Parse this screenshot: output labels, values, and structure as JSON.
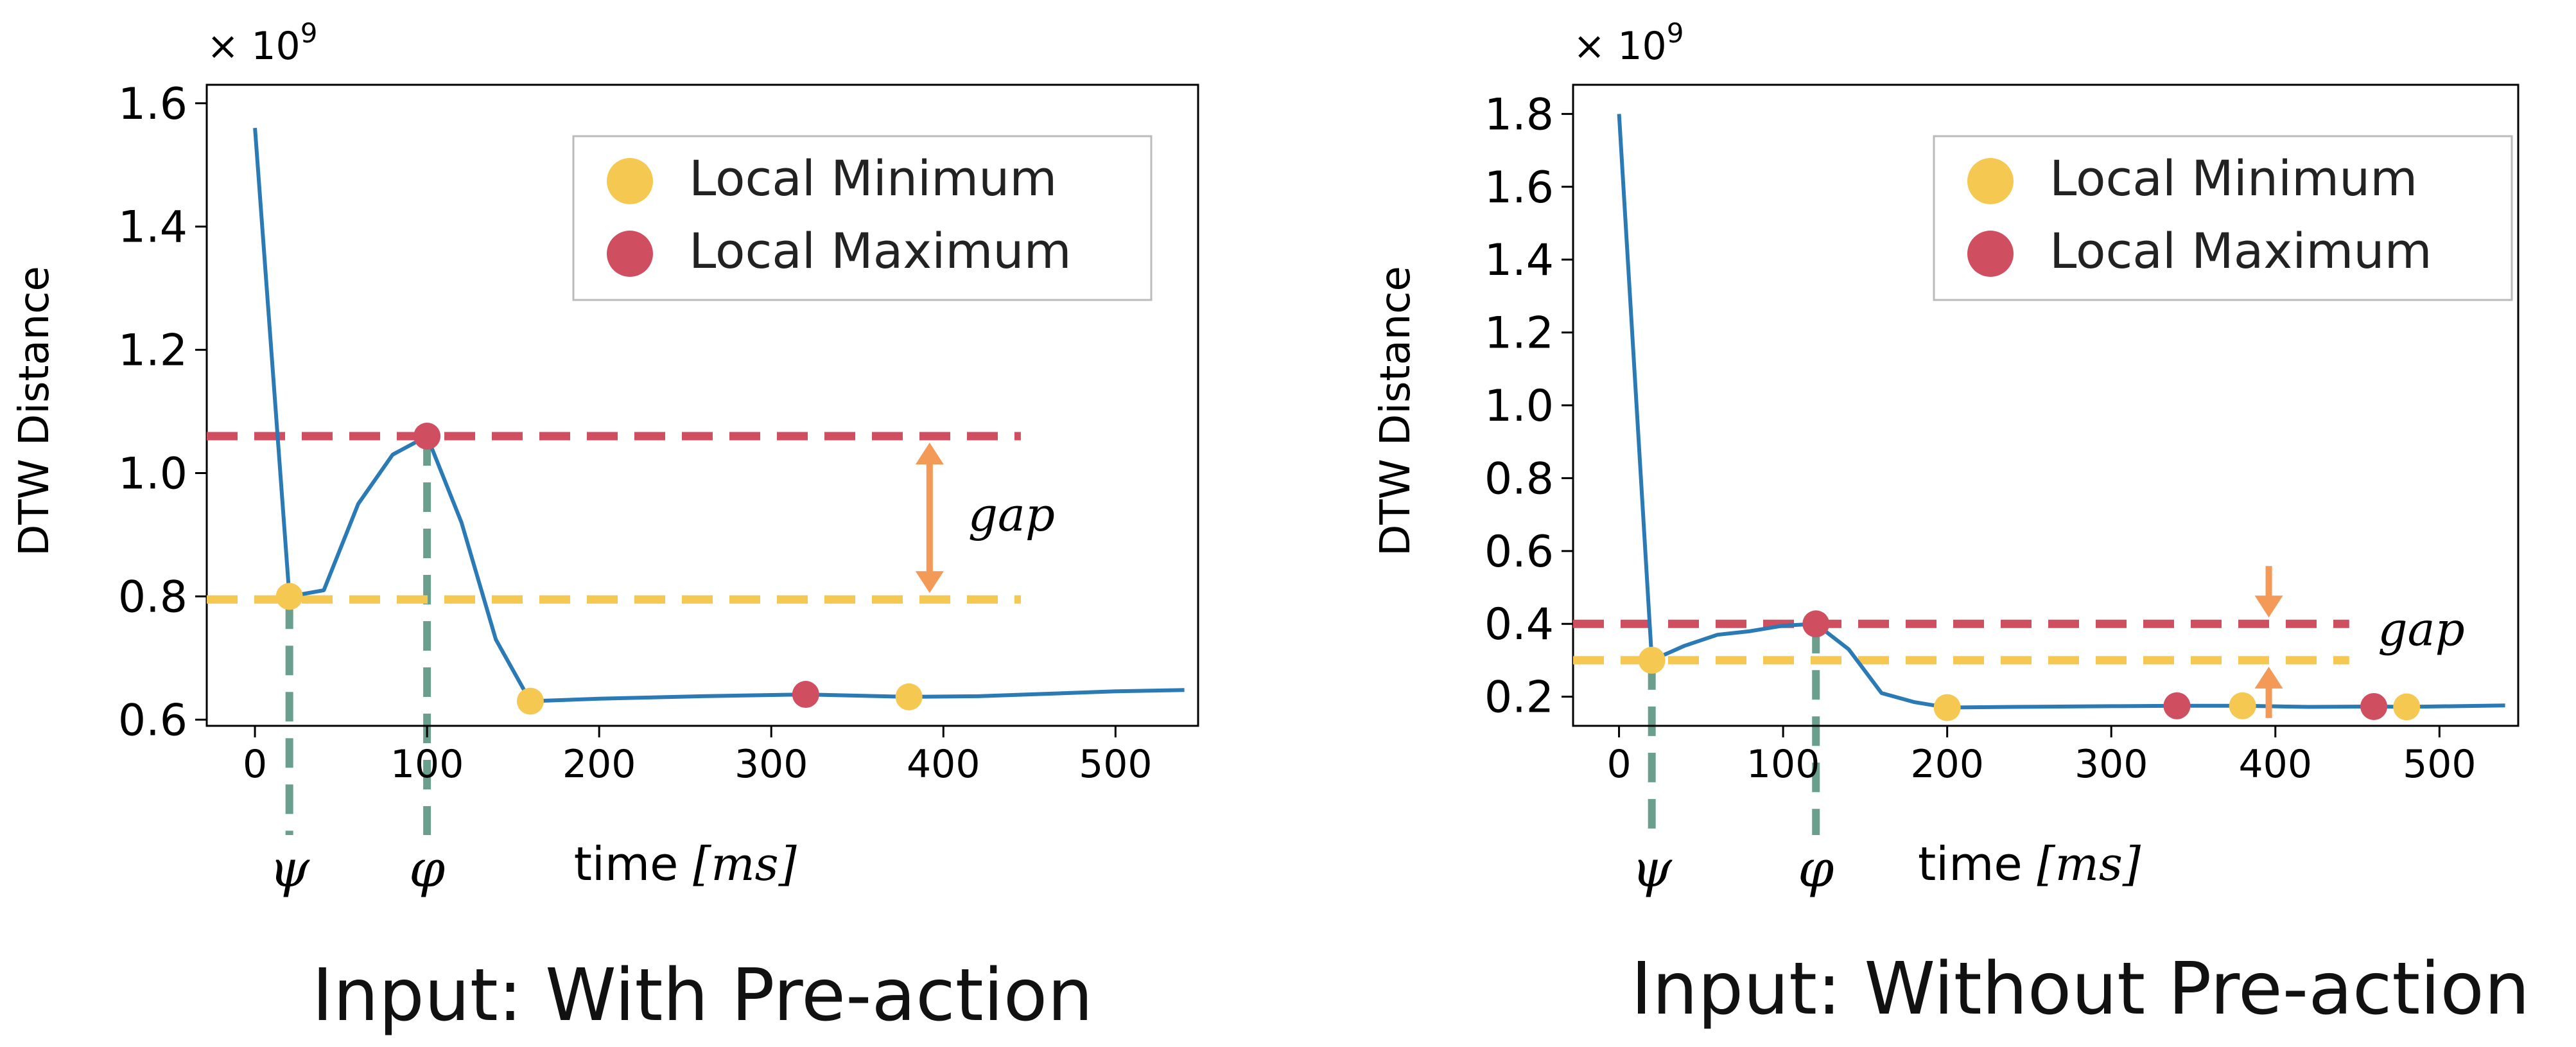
{
  "chart_data": [
    {
      "type": "line",
      "caption": "Input: With Pre-action",
      "ylabel": "DTW Distance",
      "xlabel_prefix": "time ",
      "xlabel_unit": "[ms]",
      "y_multiplier": "× 10",
      "y_exponent": "9",
      "xlim": [
        -28,
        548
      ],
      "ylim": [
        0.59,
        1.63
      ],
      "xticks": [
        0,
        100,
        200,
        300,
        400,
        500
      ],
      "yticks": [
        0.6,
        0.8,
        1.0,
        1.2,
        1.4,
        1.6
      ],
      "ytick_labels": [
        "0.6",
        "0.8",
        "1.0",
        "1.2",
        "1.4",
        "1.6"
      ],
      "series": [
        {
          "name": "DTW distance",
          "x": [
            0,
            20,
            40,
            60,
            80,
            100,
            120,
            140,
            160,
            200,
            260,
            320,
            380,
            420,
            460,
            500,
            540
          ],
          "y": [
            1.56,
            0.8,
            0.81,
            0.95,
            1.03,
            1.06,
            0.92,
            0.73,
            0.63,
            0.634,
            0.638,
            0.641,
            0.637,
            0.638,
            0.642,
            0.646,
            0.648
          ],
          "color": "#2a7ab5"
        }
      ],
      "local_minima": [
        {
          "x": 20,
          "y": 0.8
        },
        {
          "x": 160,
          "y": 0.63
        },
        {
          "x": 380,
          "y": 0.637
        }
      ],
      "local_maxima": [
        {
          "x": 100,
          "y": 1.06
        },
        {
          "x": 320,
          "y": 0.641
        }
      ],
      "min_line": 0.795,
      "max_line": 1.06,
      "hline_xrange": [
        -28,
        445
      ],
      "gap_x": 392,
      "gap_mode": "inner",
      "gap_label": "gap",
      "psi_x": 20,
      "phi_x": 100,
      "psi_label": "ψ",
      "phi_label": "φ",
      "legend": [
        "Local Minimum",
        "Local Maximum"
      ]
    },
    {
      "type": "line",
      "caption": "Input: Without Pre-action",
      "ylabel": "DTW Distance",
      "xlabel_prefix": "time ",
      "xlabel_unit": "[ms]",
      "y_multiplier": "× 10",
      "y_exponent": "9",
      "xlim": [
        -28,
        548
      ],
      "ylim": [
        0.12,
        1.88
      ],
      "xticks": [
        0,
        100,
        200,
        300,
        400,
        500
      ],
      "yticks": [
        0.2,
        0.4,
        0.6,
        0.8,
        1.0,
        1.2,
        1.4,
        1.6,
        1.8
      ],
      "ytick_labels": [
        "0.2",
        "0.4",
        "0.6",
        "0.8",
        "1.0",
        "1.2",
        "1.4",
        "1.6",
        "1.8"
      ],
      "series": [
        {
          "name": "DTW distance",
          "x": [
            0,
            20,
            40,
            60,
            80,
            100,
            120,
            140,
            160,
            180,
            200,
            240,
            300,
            340,
            380,
            420,
            460,
            480,
            540
          ],
          "y": [
            1.8,
            0.3,
            0.34,
            0.37,
            0.38,
            0.395,
            0.4,
            0.33,
            0.21,
            0.185,
            0.17,
            0.172,
            0.174,
            0.175,
            0.175,
            0.172,
            0.173,
            0.172,
            0.176
          ],
          "color": "#2a7ab5"
        }
      ],
      "local_minima": [
        {
          "x": 20,
          "y": 0.3
        },
        {
          "x": 200,
          "y": 0.17
        },
        {
          "x": 380,
          "y": 0.175
        },
        {
          "x": 480,
          "y": 0.172
        }
      ],
      "local_maxima": [
        {
          "x": 120,
          "y": 0.4
        },
        {
          "x": 340,
          "y": 0.175
        },
        {
          "x": 460,
          "y": 0.173
        }
      ],
      "min_line": 0.3,
      "max_line": 0.4,
      "hline_xrange": [
        -28,
        445
      ],
      "gap_x": 396,
      "gap_mode": "outer",
      "gap_label": "gap",
      "psi_x": 20,
      "phi_x": 120,
      "psi_label": "ψ",
      "phi_label": "φ",
      "legend": [
        "Local Minimum",
        "Local Maximum"
      ]
    }
  ],
  "colors": {
    "line": "#2a7ab5",
    "min_marker": "#f5c851",
    "max_marker": "#cf4e60",
    "min_dash": "#f5c851",
    "max_dash": "#cf4e60",
    "gap_arrow": "#f39a58",
    "guide": "#6a9e8d"
  }
}
